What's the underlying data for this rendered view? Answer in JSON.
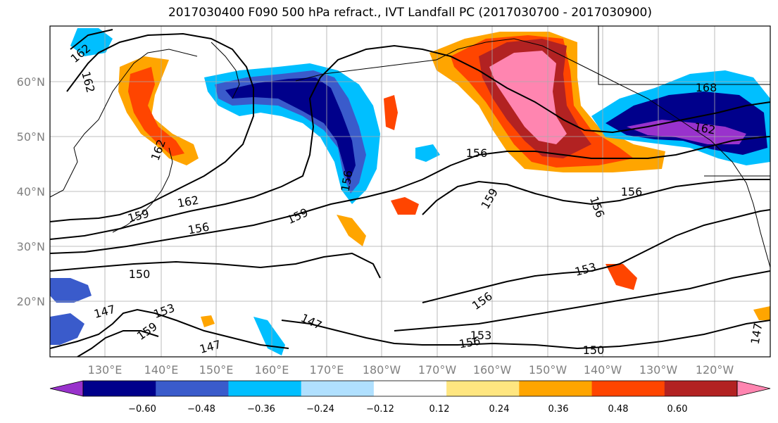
{
  "title": "2017030400 F090 500 hPa refract., IVT Landfall PC (2017030700 - 2017030900)",
  "lat_labels": [
    "60°N",
    "50°N",
    "40°N",
    "30°N",
    "20°N"
  ],
  "lon_labels": [
    "130°E",
    "140°E",
    "150°E",
    "160°E",
    "170°E",
    "180°W",
    "170°W",
    "160°W",
    "150°W",
    "140°W",
    "130°W",
    "120°W"
  ],
  "contour_labels": [
    "162",
    "162",
    "162",
    "168",
    "162",
    "156",
    "159",
    "156",
    "156",
    "162",
    "159",
    "156",
    "159",
    "150",
    "153",
    "156",
    "147",
    "153",
    "159",
    "147",
    "147",
    "153",
    "150",
    "156",
    "156",
    "147"
  ],
  "colorbar": {
    "colors": [
      "#9932cc",
      "#00008b",
      "#3a5bcb",
      "#00bfff",
      "#b0e0ff",
      "#ffffff",
      "#ffe680",
      "#ffa500",
      "#ff4500",
      "#b22222",
      "#ff85b0"
    ],
    "tick_labels": [
      "−0.60",
      "−0.48",
      "−0.36",
      "−0.24",
      "−0.12",
      "0.12",
      "0.24",
      "0.36",
      "0.48",
      "0.60"
    ]
  },
  "colors": {
    "contour": "#000000",
    "grid": "#aaaaaa",
    "coast": "#000000",
    "axis_text": "#808080"
  }
}
